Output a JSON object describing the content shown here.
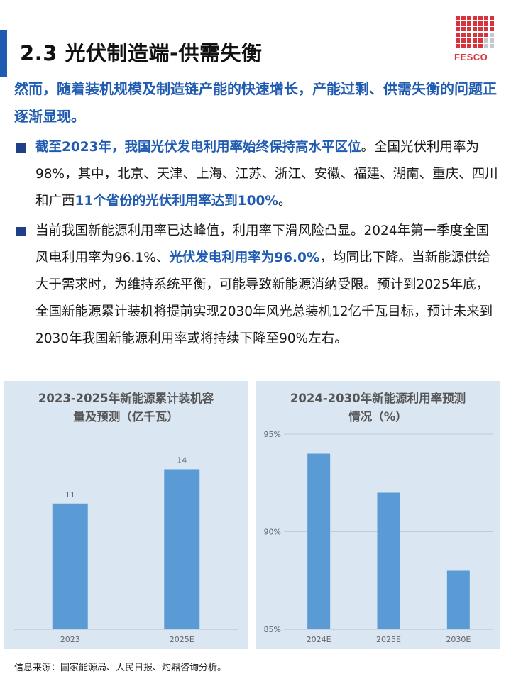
{
  "header": {
    "title": "2.3 光伏制造端-供需失衡",
    "logo_text": "FESCO",
    "accent_color": "#1f5bb0",
    "logo_color": "#d8323c"
  },
  "lead": "然而，随着装机规模及制造链产能的快速增长，产能过剩、供需失衡的问题正逐渐显现。",
  "bullets": [
    {
      "hl1": "截至2023年，我国光伏发电利用率始终保持高水平区位",
      "t1": "。全国光伏利用率为98%，其中，北京、天津、上海、江苏、浙江、安徽、福建、湖南、重庆、四川和广西",
      "hl2": "11个省份的光伏利用率达到100%",
      "t2": "。"
    },
    {
      "t1": "当前我国新能源利用率已达峰值，利用率下滑风险凸显。2024年第一季度全国风电利用率为96.1%、",
      "hl1": "光伏发电利用率为96.0%",
      "t2": "，均同比下降。当新能源供给大于需求时，为维持系统平衡，可能导致新能源消纳受限。预计到2025年底，全国新能源累计装机将提前实现2030年风光总装机12亿千瓦目标，预计未来到2030年我国新能源利用率或将持续下降至90%左右。"
    }
  ],
  "chart_data": [
    {
      "type": "bar",
      "title": "2023-2025年新能源累计装机容量及预测（亿千瓦）",
      "title_lines": [
        "2023-2025年新能源累计装机容",
        "量及预测（亿千瓦）"
      ],
      "categories": [
        "2023",
        "2025E"
      ],
      "values": [
        11,
        14
      ],
      "value_labels": [
        "11",
        "14"
      ],
      "ylim": [
        0,
        18
      ],
      "y_axis_visible": false,
      "grid": false,
      "bar_color": "#5b9bd5",
      "background": "#dae6f2"
    },
    {
      "type": "bar",
      "title": "2024-2030年新能源利用率预测情况（%）",
      "title_lines": [
        "2024-2030年新能源利用率预测",
        "情况（%）"
      ],
      "categories": [
        "2024E",
        "2025E",
        "2030E"
      ],
      "values": [
        94,
        92,
        88
      ],
      "ylim": [
        85,
        95
      ],
      "yticks": [
        85,
        90,
        95
      ],
      "ytick_labels": [
        "85%",
        "90%",
        "95%"
      ],
      "grid": true,
      "bar_color": "#5b9bd5",
      "background": "#dae6f2"
    }
  ],
  "source": "信息来源：国家能源局、人民日报、灼鼎咨询分析。"
}
